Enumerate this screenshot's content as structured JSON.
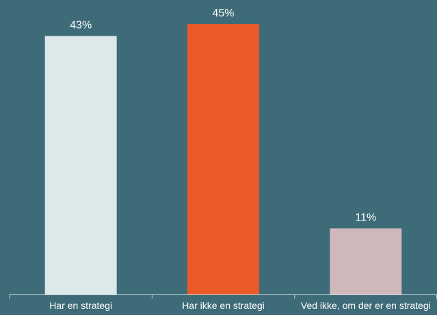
{
  "chart_data": {
    "type": "bar",
    "categories": [
      "Har en strategi",
      "Har ikke en strategi",
      "Ved ikke, om der er en strategi"
    ],
    "values": [
      43,
      45,
      11
    ],
    "value_labels": [
      "43%",
      "45%",
      "11%"
    ],
    "bar_colors": [
      "#dde8ea",
      "#ea5b29",
      "#cfb8b9"
    ],
    "title": "",
    "xlabel": "",
    "ylabel": "",
    "ylim": [
      0,
      45
    ],
    "grid": false,
    "legend": "none"
  },
  "colors": {
    "background": "#3e6b78",
    "text": "#ffffff",
    "axis": "#c9d6da"
  }
}
